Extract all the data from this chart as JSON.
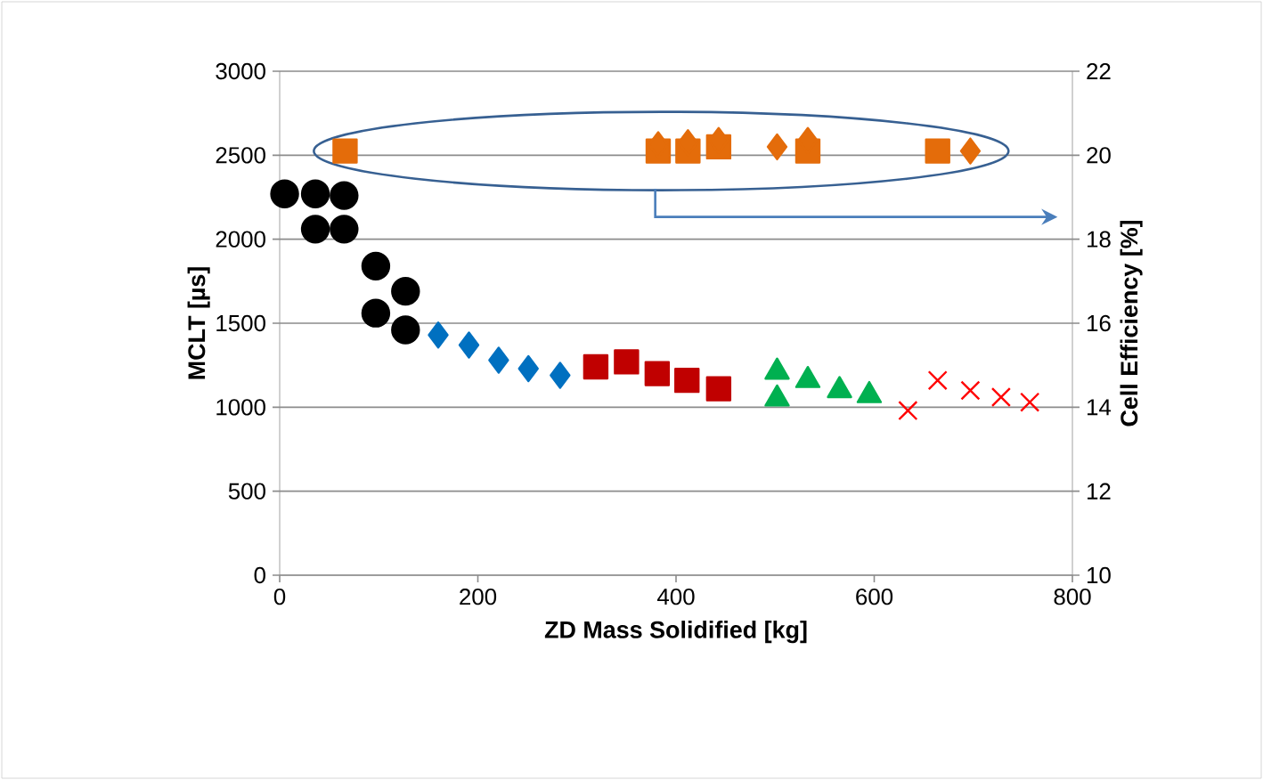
{
  "chart_data": {
    "type": "scatter",
    "xlabel": "ZD Mass Solidified [kg]",
    "ylabel": "MCLT [µs]",
    "y2label": "Cell Efficiency [%]",
    "xlim": [
      0,
      800
    ],
    "xticks": [
      0,
      200,
      400,
      600,
      800
    ],
    "ylim": [
      0,
      3000
    ],
    "yticks": [
      0,
      500,
      1000,
      1500,
      2000,
      2500,
      3000
    ],
    "y2lim": [
      10,
      22
    ],
    "y2ticks": [
      10,
      12,
      14,
      16,
      18,
      20,
      22
    ],
    "grid": "y",
    "series": [
      {
        "color": "#000000",
        "marker": "circle",
        "x": [
          5,
          36,
          65,
          36,
          65,
          97,
          127,
          97,
          127
        ],
        "values": [
          2270,
          2270,
          2260,
          2060,
          2060,
          1840,
          1690,
          1560,
          1460
        ]
      },
      {
        "color": "#0070c0",
        "marker": "diamond",
        "x": [
          160,
          191,
          221,
          251,
          283
        ],
        "values": [
          1430,
          1370,
          1280,
          1230,
          1190
        ]
      },
      {
        "color": "#c00000",
        "marker": "square",
        "x": [
          319,
          350,
          381,
          411,
          443
        ],
        "values": [
          1240,
          1270,
          1200,
          1160,
          1110
        ]
      },
      {
        "color": "#00b050",
        "marker": "triangle",
        "x": [
          502,
          502,
          533,
          565,
          595
        ],
        "values": [
          1210,
          1050,
          1160,
          1100,
          1070
        ]
      },
      {
        "color": "#ff0000",
        "marker": "cross",
        "x": [
          634,
          664,
          697,
          728,
          757
        ],
        "values": [
          980,
          1160,
          1100,
          1060,
          1030
        ]
      },
      {
        "color": "#e46c0a",
        "marker": "square",
        "axis": "y2",
        "x": [
          66,
          382,
          412,
          443,
          533,
          664
        ],
        "values": [
          20.1,
          20.1,
          20.1,
          20.2,
          20.1,
          20.1
        ]
      },
      {
        "color": "#e46c0a",
        "marker": "diamond",
        "axis": "y2",
        "x": [
          382,
          412,
          443,
          502,
          533,
          697
        ],
        "values": [
          20.25,
          20.3,
          20.35,
          20.2,
          20.35,
          20.1
        ]
      }
    ]
  }
}
